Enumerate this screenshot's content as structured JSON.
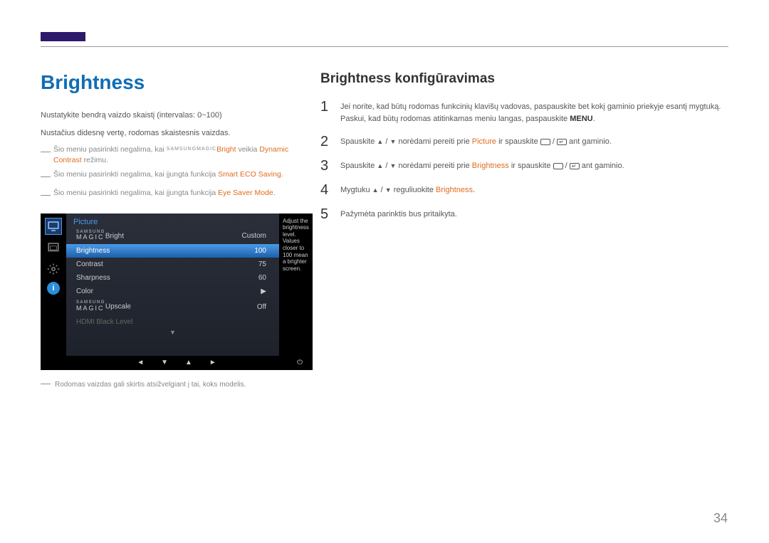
{
  "page_number": "34",
  "left": {
    "heading": "Brightness",
    "para1": "Nustatykite bendrą vaizdo skaistį (intervalas: 0~100)",
    "para2": "Nustačius didesnę vertę, rodomas skaistesnis vaizdas.",
    "note1_a": "Šio meniu pasirinkti negalima, kai ",
    "note1_magic": "SAMSUNG",
    "note1_magic2": "MAGIC",
    "note1_bright": "Bright",
    "note1_b": " veikia ",
    "note1_dc": "Dynamic Contrast",
    "note1_c": " režimu.",
    "note2_a": "Šio meniu pasirinkti negalima, kai įjungta funkcija ",
    "note2_hl": "Smart ECO Saving",
    "note2_b": ".",
    "note3_a": "Šio meniu pasirinkti negalima, kai įjungta funkcija ",
    "note3_hl": "Eye Saver Mode",
    "note3_b": ".",
    "footnote": "Rodomas vaizdas gali skirtis atsižvelgiant į tai, koks modelis."
  },
  "osd": {
    "title": "Picture",
    "helper_text": "Adjust the brightness level. Values closer to 100 mean a brighter screen.",
    "rows": [
      {
        "label_prefix": "SAMSUNG MAGIC",
        "label": "Bright",
        "value": "Custom",
        "type": "magic"
      },
      {
        "label": "Brightness",
        "value": "100",
        "selected": true
      },
      {
        "label": "Contrast",
        "value": "75"
      },
      {
        "label": "Sharpness",
        "value": "60"
      },
      {
        "label": "Color",
        "value": "▶"
      },
      {
        "label_prefix": "SAMSUNG MAGIC",
        "label": "Upscale",
        "value": "Off",
        "type": "magic"
      },
      {
        "label": "HDMI Black Level",
        "value": "",
        "disabled": true
      }
    ]
  },
  "right": {
    "heading": "Brightness konfigūravimas",
    "steps": {
      "s1_a": "Jei norite, kad būtų rodomas funkcinių klavišų vadovas, paspauskite bet kokį gaminio priekyje esantį mygtuką. Paskui, kad būtų rodomas atitinkamas meniu langas, paspauskite ",
      "s1_menu": "MENU",
      "s1_b": ".",
      "s2_a": "Spauskite ",
      "s2_b": " norėdami pereiti prie ",
      "s2_picture": "Picture",
      "s2_c": " ir spauskite ",
      "s2_d": " ant gaminio.",
      "s3_a": "Spauskite ",
      "s3_b": " norėdami pereiti prie ",
      "s3_brightness": "Brightness",
      "s3_c": " ir spauskite ",
      "s3_d": " ant gaminio.",
      "s4_a": "Mygtuku ",
      "s4_b": " reguliuokite ",
      "s4_brightness": "Brightness",
      "s4_c": ".",
      "s5": "Pažymėta parinktis bus pritaikyta."
    }
  }
}
